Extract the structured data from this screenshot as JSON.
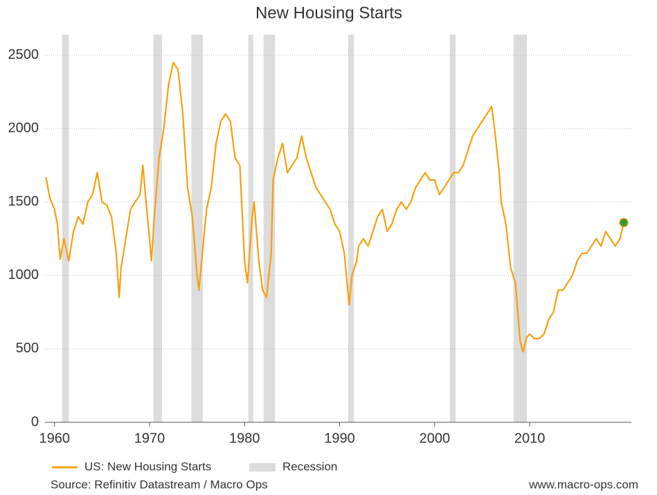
{
  "chart_data": {
    "type": "line",
    "title": "New Housing Starts",
    "series": [
      {
        "name": "US: New Housing Starts",
        "color": "#f5a00f",
        "x": [
          1959.1,
          1959.5,
          1960.0,
          1960.3,
          1960.6,
          1961.0,
          1961.5,
          1962,
          1962.5,
          1963,
          1963.5,
          1964,
          1964.5,
          1965,
          1965.5,
          1966,
          1966.5,
          1966.8,
          1967,
          1967.5,
          1968,
          1968.5,
          1969,
          1969.3,
          1969.7,
          1970,
          1970.2,
          1970.5,
          1971,
          1971.5,
          1972,
          1972.5,
          1973,
          1973.5,
          1974,
          1974.5,
          1975,
          1975.2,
          1975.7,
          1976,
          1976.5,
          1977,
          1977.5,
          1978,
          1978.5,
          1979,
          1979.5,
          1980,
          1980.3,
          1980.8,
          1981,
          1981.5,
          1981.9,
          1982.3,
          1982.8,
          1983,
          1983.5,
          1984,
          1984.5,
          1985,
          1985.5,
          1986,
          1986.5,
          1987,
          1987.5,
          1988,
          1988.5,
          1989,
          1989.5,
          1990,
          1990.5,
          1991,
          1991.3,
          1991.8,
          1992,
          1992.5,
          1993,
          1993.5,
          1994,
          1994.5,
          1995,
          1995.5,
          1996,
          1996.5,
          1997,
          1997.5,
          1998,
          1998.5,
          1999,
          1999.5,
          2000,
          2000.5,
          2001,
          2001.5,
          2002,
          2002.5,
          2003,
          2003.5,
          2004,
          2004.5,
          2005,
          2005.5,
          2006,
          2006.3,
          2006.8,
          2007,
          2007.5,
          2008,
          2008.5,
          2009,
          2009.3,
          2009.7,
          2010,
          2010.5,
          2011,
          2011.5,
          2012,
          2012.5,
          2013,
          2013.5,
          2014,
          2014.5,
          2015,
          2015.5,
          2016,
          2016.5,
          2017,
          2017.5,
          2018,
          2018.5,
          2019,
          2019.5,
          2019.9
        ],
        "values": [
          1670,
          1530,
          1450,
          1350,
          1110,
          1250,
          1100,
          1300,
          1400,
          1350,
          1500,
          1550,
          1700,
          1500,
          1480,
          1400,
          1150,
          850,
          1050,
          1250,
          1450,
          1500,
          1550,
          1750,
          1450,
          1250,
          1100,
          1400,
          1800,
          2000,
          2300,
          2450,
          2400,
          2100,
          1600,
          1400,
          1000,
          900,
          1250,
          1450,
          1600,
          1900,
          2050,
          2100,
          2050,
          1800,
          1750,
          1100,
          950,
          1400,
          1500,
          1100,
          900,
          850,
          1150,
          1650,
          1800,
          1900,
          1700,
          1750,
          1800,
          1950,
          1800,
          1700,
          1600,
          1550,
          1500,
          1450,
          1350,
          1300,
          1150,
          800,
          1000,
          1100,
          1200,
          1250,
          1200,
          1300,
          1400,
          1450,
          1300,
          1350,
          1450,
          1500,
          1450,
          1500,
          1600,
          1650,
          1700,
          1650,
          1650,
          1550,
          1600,
          1650,
          1700,
          1700,
          1750,
          1850,
          1950,
          2000,
          2050,
          2100,
          2150,
          2000,
          1700,
          1500,
          1350,
          1050,
          950,
          550,
          480,
          580,
          600,
          570,
          570,
          600,
          700,
          750,
          900,
          900,
          950,
          1000,
          1100,
          1150,
          1150,
          1200,
          1250,
          1200,
          1300,
          1250,
          1200,
          1250,
          1360
        ]
      }
    ],
    "recession": {
      "name": "Recession",
      "color": "#dcdcdc",
      "periods": [
        [
          1960.8,
          1961.5
        ],
        [
          1970.4,
          1971.3
        ],
        [
          1974.4,
          1975.6
        ],
        [
          1980.4,
          1980.9
        ],
        [
          1982.0,
          1983.2
        ],
        [
          1990.9,
          1991.5
        ],
        [
          2001.6,
          2002.2
        ],
        [
          2008.3,
          2009.7
        ]
      ]
    },
    "highlight_color": "#2e9b3a",
    "xlim": [
      1959,
      2020.7
    ],
    "xticks": [
      1960,
      1970,
      1980,
      1990,
      2000,
      2010
    ],
    "ylim": [
      0,
      2640
    ],
    "yticks": [
      0,
      500,
      1000,
      1500,
      2000,
      2500
    ],
    "grid": true,
    "source": "Source: Refinitiv Datastream / Macro Ops",
    "website": "www.macro-ops.com"
  }
}
